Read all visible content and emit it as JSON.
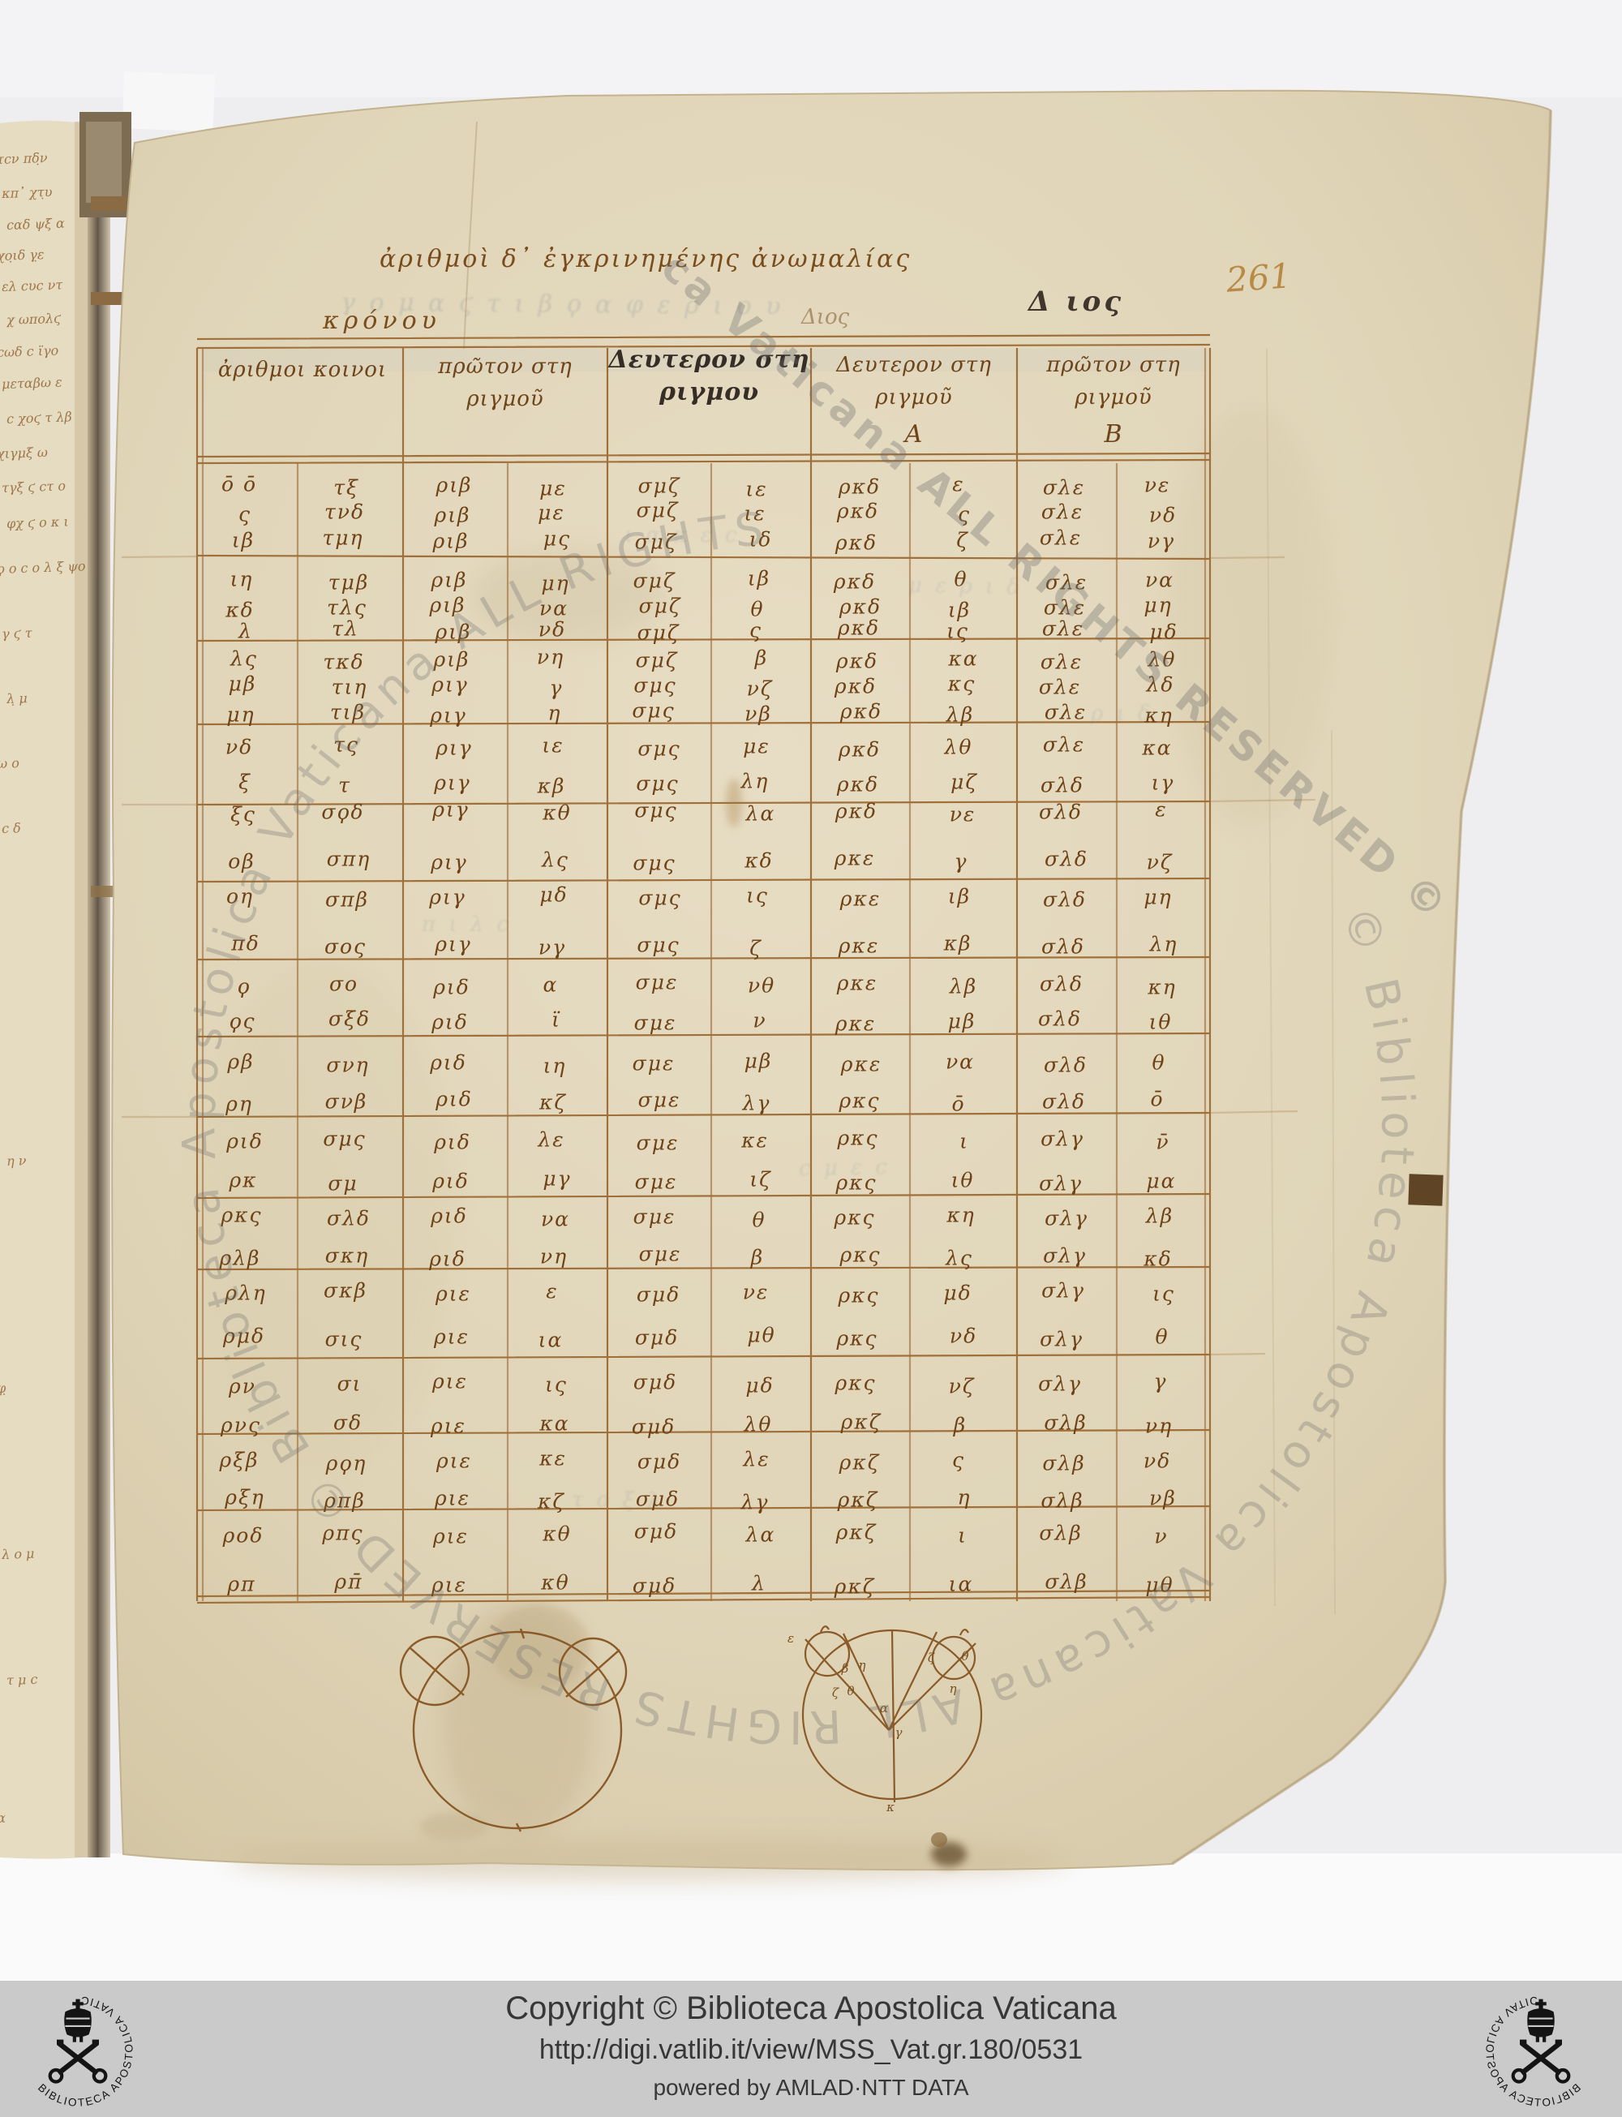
{
  "page_number": "261",
  "title": "ἀριθμοὶ δ᾽ ἐγκρινημένης ἀνωμαλίας",
  "labels": {
    "saturn": "κρόνου",
    "jupiter_faint": "Διος",
    "jupiter_dark": "Δ ιος"
  },
  "table": {
    "headers": [
      {
        "l1": "ἀριθμοι κοινοι",
        "l2": "",
        "sub": ""
      },
      {
        "l1": "πρῶτον στη",
        "l2": "ριγμοῦ",
        "sub": ""
      },
      {
        "l1": "Δευτερον στη",
        "l2": "ριγμου",
        "sub": ""
      },
      {
        "l1": "Δευτερον στη",
        "l2": "ριγμοῦ",
        "sub": "Α"
      },
      {
        "l1": "πρῶτον στη",
        "l2": "ριγμοῦ",
        "sub": "Β"
      }
    ],
    "rows": [
      [
        "ο̄ ο̄",
        "τξ",
        "ριβ",
        "με",
        "σμζ",
        "ιε",
        "ρκδ",
        "ε",
        "σλε",
        "νε"
      ],
      [
        "ς",
        "τνδ",
        "ριβ",
        "με",
        "σμζ",
        "ιε",
        "ρκδ",
        "ς",
        "σλε",
        "νδ"
      ],
      [
        "ιβ",
        "τμη",
        "ριβ",
        "μς",
        "σμζ",
        "ιδ",
        "ρκδ",
        "ζ",
        "σλε",
        "νγ"
      ],
      [
        "ιη",
        "τμβ",
        "ριβ",
        "μη",
        "σμζ",
        "ιβ",
        "ρκδ",
        "θ",
        "σλε",
        "να"
      ],
      [
        "κδ",
        "τλς",
        "ριβ",
        "να",
        "σμζ",
        "θ",
        "ρκδ",
        "ιβ",
        "σλε",
        "μη"
      ],
      [
        "λ",
        "τλ",
        "ριβ",
        "νδ",
        "σμζ",
        "ς",
        "ρκδ",
        "ις",
        "σλε",
        "μδ"
      ],
      [
        "λς",
        "τκδ",
        "ριβ",
        "νη",
        "σμζ",
        "β",
        "ρκδ",
        "κα",
        "σλε",
        "λθ"
      ],
      [
        "μβ",
        "τιη",
        "ριγ",
        "γ",
        "σμς",
        "νζ",
        "ρκδ",
        "κς",
        "σλε",
        "λδ"
      ],
      [
        "μη",
        "τιβ",
        "ριγ",
        "η",
        "σμς",
        "νβ",
        "ρκδ",
        "λβ",
        "σλε",
        "κη"
      ],
      [
        "νδ",
        "τς",
        "ριγ",
        "ιε",
        "σμς",
        "με",
        "ρκδ",
        "λθ",
        "σλε",
        "κα"
      ],
      [
        "ξ",
        "τ",
        "ριγ",
        "κβ",
        "σμς",
        "λη",
        "ρκδ",
        "μζ",
        "σλδ",
        "ιγ"
      ],
      [
        "ξς",
        "σϙδ",
        "ριγ",
        "κθ",
        "σμς",
        "λα",
        "ρκδ",
        "νε",
        "σλδ",
        "ε"
      ],
      [
        "οβ",
        "σπη",
        "ριγ",
        "λς",
        "σμς",
        "κδ",
        "ρκε",
        "γ",
        "σλδ",
        "νζ"
      ],
      [
        "οη",
        "σπβ",
        "ριγ",
        "μδ",
        "σμς",
        "ις",
        "ρκε",
        "ιβ",
        "σλδ",
        "μη"
      ],
      [
        "πδ",
        "σος",
        "ριγ",
        "νγ",
        "σμς",
        "ζ",
        "ρκε",
        "κβ",
        "σλδ",
        "λη"
      ],
      [
        "ϙ",
        "σο",
        "ριδ",
        "α",
        "σμε",
        "νθ",
        "ρκε",
        "λβ",
        "σλδ",
        "κη"
      ],
      [
        "ϙς",
        "σξδ",
        "ριδ",
        "ϊ",
        "σμε",
        "ν",
        "ρκε",
        "μβ",
        "σλδ",
        "ιθ"
      ],
      [
        "ρβ",
        "σνη",
        "ριδ",
        "ιη",
        "σμε",
        "μβ",
        "ρκε",
        "να",
        "σλδ",
        "θ"
      ],
      [
        "ρη",
        "σνβ",
        "ριδ",
        "κζ",
        "σμε",
        "λγ",
        "ρκς",
        "ο̄",
        "σλδ",
        "ο̄"
      ],
      [
        "ριδ",
        "σμς",
        "ριδ",
        "λε",
        "σμε",
        "κε",
        "ρκς",
        "ι",
        "σλγ",
        "ν̄"
      ],
      [
        "ρκ",
        "σμ",
        "ριδ",
        "μγ",
        "σμε",
        "ιζ",
        "ρκς",
        "ιθ",
        "σλγ",
        "μα"
      ],
      [
        "ρκς",
        "σλδ",
        "ριδ",
        "να",
        "σμε",
        "θ",
        "ρκς",
        "κη",
        "σλγ",
        "λβ"
      ],
      [
        "ρλβ",
        "σκη",
        "ριδ",
        "νη",
        "σμε",
        "β",
        "ρκς",
        "λς",
        "σλγ",
        "κδ"
      ],
      [
        "ρλη",
        "σκβ",
        "ριε",
        "ε",
        "σμδ",
        "νε",
        "ρκς",
        "μδ",
        "σλγ",
        "ις"
      ],
      [
        "ρμδ",
        "σις",
        "ριε",
        "ια",
        "σμδ",
        "μθ",
        "ρκς",
        "νδ",
        "σλγ",
        "θ"
      ],
      [
        "ρν",
        "σι",
        "ριε",
        "ις",
        "σμδ",
        "μδ",
        "ρκς",
        "νζ",
        "σλγ",
        "γ"
      ],
      [
        "ρνς",
        "σδ",
        "ριε",
        "κα",
        "σμδ",
        "λθ",
        "ρκζ",
        "β",
        "σλβ",
        "νη"
      ],
      [
        "ρξβ",
        "ρϙη",
        "ριε",
        "κε",
        "σμδ",
        "λε",
        "ρκζ",
        "ς",
        "σλβ",
        "νδ"
      ],
      [
        "ρξη",
        "ρπβ",
        "ριε",
        "κζ",
        "σμδ",
        "λγ",
        "ρκζ",
        "η",
        "σλβ",
        "νβ"
      ],
      [
        "ροδ",
        "ρπς",
        "ριε",
        "κθ",
        "σμδ",
        "λα",
        "ρκζ",
        "ι",
        "σλβ",
        "ν"
      ],
      [
        "ρπ",
        "ρπ̄",
        "ριε",
        "κθ",
        "σμδ",
        "λ",
        "ρκζ",
        "ια",
        "σλβ",
        "μθ"
      ]
    ]
  },
  "diagrams": {
    "labels": [
      "ε",
      "β",
      "η",
      "ζ",
      "θ",
      "ζ",
      "θ",
      "η",
      "α",
      "γ",
      "κ"
    ]
  },
  "watermark": {
    "ring_text": "© Biblioteca Apostolica Vaticana  ALL RIGHTS RESERVED   © Biblioteca Apostolica Vaticana  ALL RIGHTS RESERVED",
    "diagonal_text": "ca Vaticana ALL RIGHTS RESERVED ©"
  },
  "marginalia": [
    "τϲν πδ̣ν",
    "κπ᾽ χτ̣υ",
    "ϲαδ ψξ α",
    "χο̣ιδ γ̣ε",
    "ελ ϲυϲ ντ",
    "χ ωπολϛ",
    "ϲωδ ϲ ϊγο",
    "μεταβω ε",
    "ϲ χοϛ τ λβ",
    "χιγμξ ω",
    "τγξ ϛ ϲτ ο",
    "φχ ϛ ο κ ι",
    "ϙ ο ϲ ο λ ξ ψο",
    "γ ϛ τ",
    "λ̣ μ",
    "ω ο",
    "ϲ δ",
    "η ν",
    "φ̣",
    "λ ο μ",
    "τ μ ϲ",
    "α"
  ],
  "bleedthrough": [
    "γ ο μ α ϛ   τ ι β ϙ α φ   ε ρ ι ο υ",
    "ι α κ ε ϲ",
    "μ ε ρ ι δ",
    "π ι λ ϲ",
    "ϲ μ ε ϲ",
    "τ ο ξ λ",
    "ρ ι δ"
  ],
  "footer": {
    "copyright": "Copyright © Biblioteca Apostolica Vaticana",
    "url": "http://digi.vatlib.it/view/MSS_Vat.gr.180/0531",
    "powered": "powered by AMLAD·NTT DATA",
    "logo_text": "BIBLIOTECA APOSTOLICA VATICANA"
  },
  "colors": {
    "ink": "#6e4418",
    "ruling": "#a0703a",
    "parchment": "#e0d5b8",
    "footer_bg": "#cacaca",
    "watermark_gray": "#6c6c6c"
  }
}
